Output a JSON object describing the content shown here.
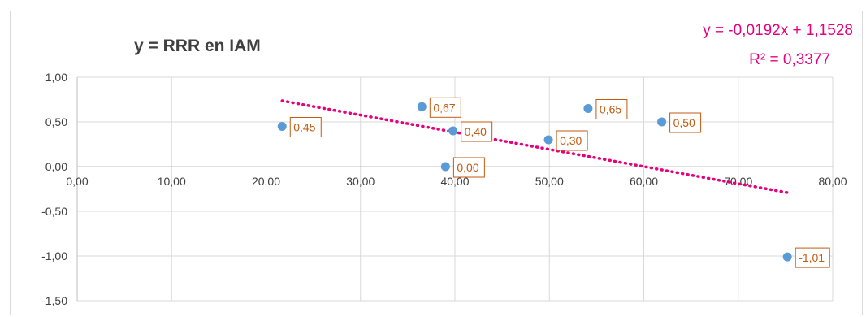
{
  "chart_data": {
    "type": "scatter",
    "title": "y = RRR en IAM",
    "trendline": {
      "equation": "y = -0,0192x + 1,1528",
      "r_squared": "R² = 0,3377",
      "slope": -0.0192,
      "intercept": 1.1528,
      "x_range": [
        21.7,
        75.2
      ],
      "color": "#e6007e"
    },
    "points": [
      {
        "x": 21.7,
        "y": 0.45,
        "label": "0,45"
      },
      {
        "x": 36.5,
        "y": 0.67,
        "label": "0,67"
      },
      {
        "x": 39.8,
        "y": 0.4,
        "label": "0,40"
      },
      {
        "x": 39.0,
        "y": 0.0,
        "label": "0,00"
      },
      {
        "x": 49.9,
        "y": 0.3,
        "label": "0,30"
      },
      {
        "x": 54.1,
        "y": 0.65,
        "label": "0,65"
      },
      {
        "x": 61.9,
        "y": 0.5,
        "label": "0,50"
      },
      {
        "x": 75.2,
        "y": -1.01,
        "label": "-1,01"
      }
    ],
    "xlim": [
      0,
      80
    ],
    "ylim": [
      -1.5,
      1.0
    ],
    "x_ticks": [
      {
        "v": 0,
        "label": "0,00"
      },
      {
        "v": 10,
        "label": "10,00"
      },
      {
        "v": 20,
        "label": "20,00"
      },
      {
        "v": 30,
        "label": "30,00"
      },
      {
        "v": 40,
        "label": "40,00"
      },
      {
        "v": 50,
        "label": "50,00"
      },
      {
        "v": 60,
        "label": "60,00"
      },
      {
        "v": 70,
        "label": "70,00"
      },
      {
        "v": 80,
        "label": "80,00"
      }
    ],
    "y_ticks": [
      {
        "v": 1.0,
        "label": "1,00"
      },
      {
        "v": 0.5,
        "label": "0,50"
      },
      {
        "v": 0.0,
        "label": "0,00"
      },
      {
        "v": -0.5,
        "label": "-0,50"
      },
      {
        "v": -1.0,
        "label": "-1,00"
      },
      {
        "v": -1.5,
        "label": "-1,50"
      }
    ],
    "grid": true,
    "colors": {
      "marker": "#5b9bd5",
      "label": "#c55a11",
      "grid": "#d9d9d9",
      "axis": "#bfbfbf"
    }
  }
}
